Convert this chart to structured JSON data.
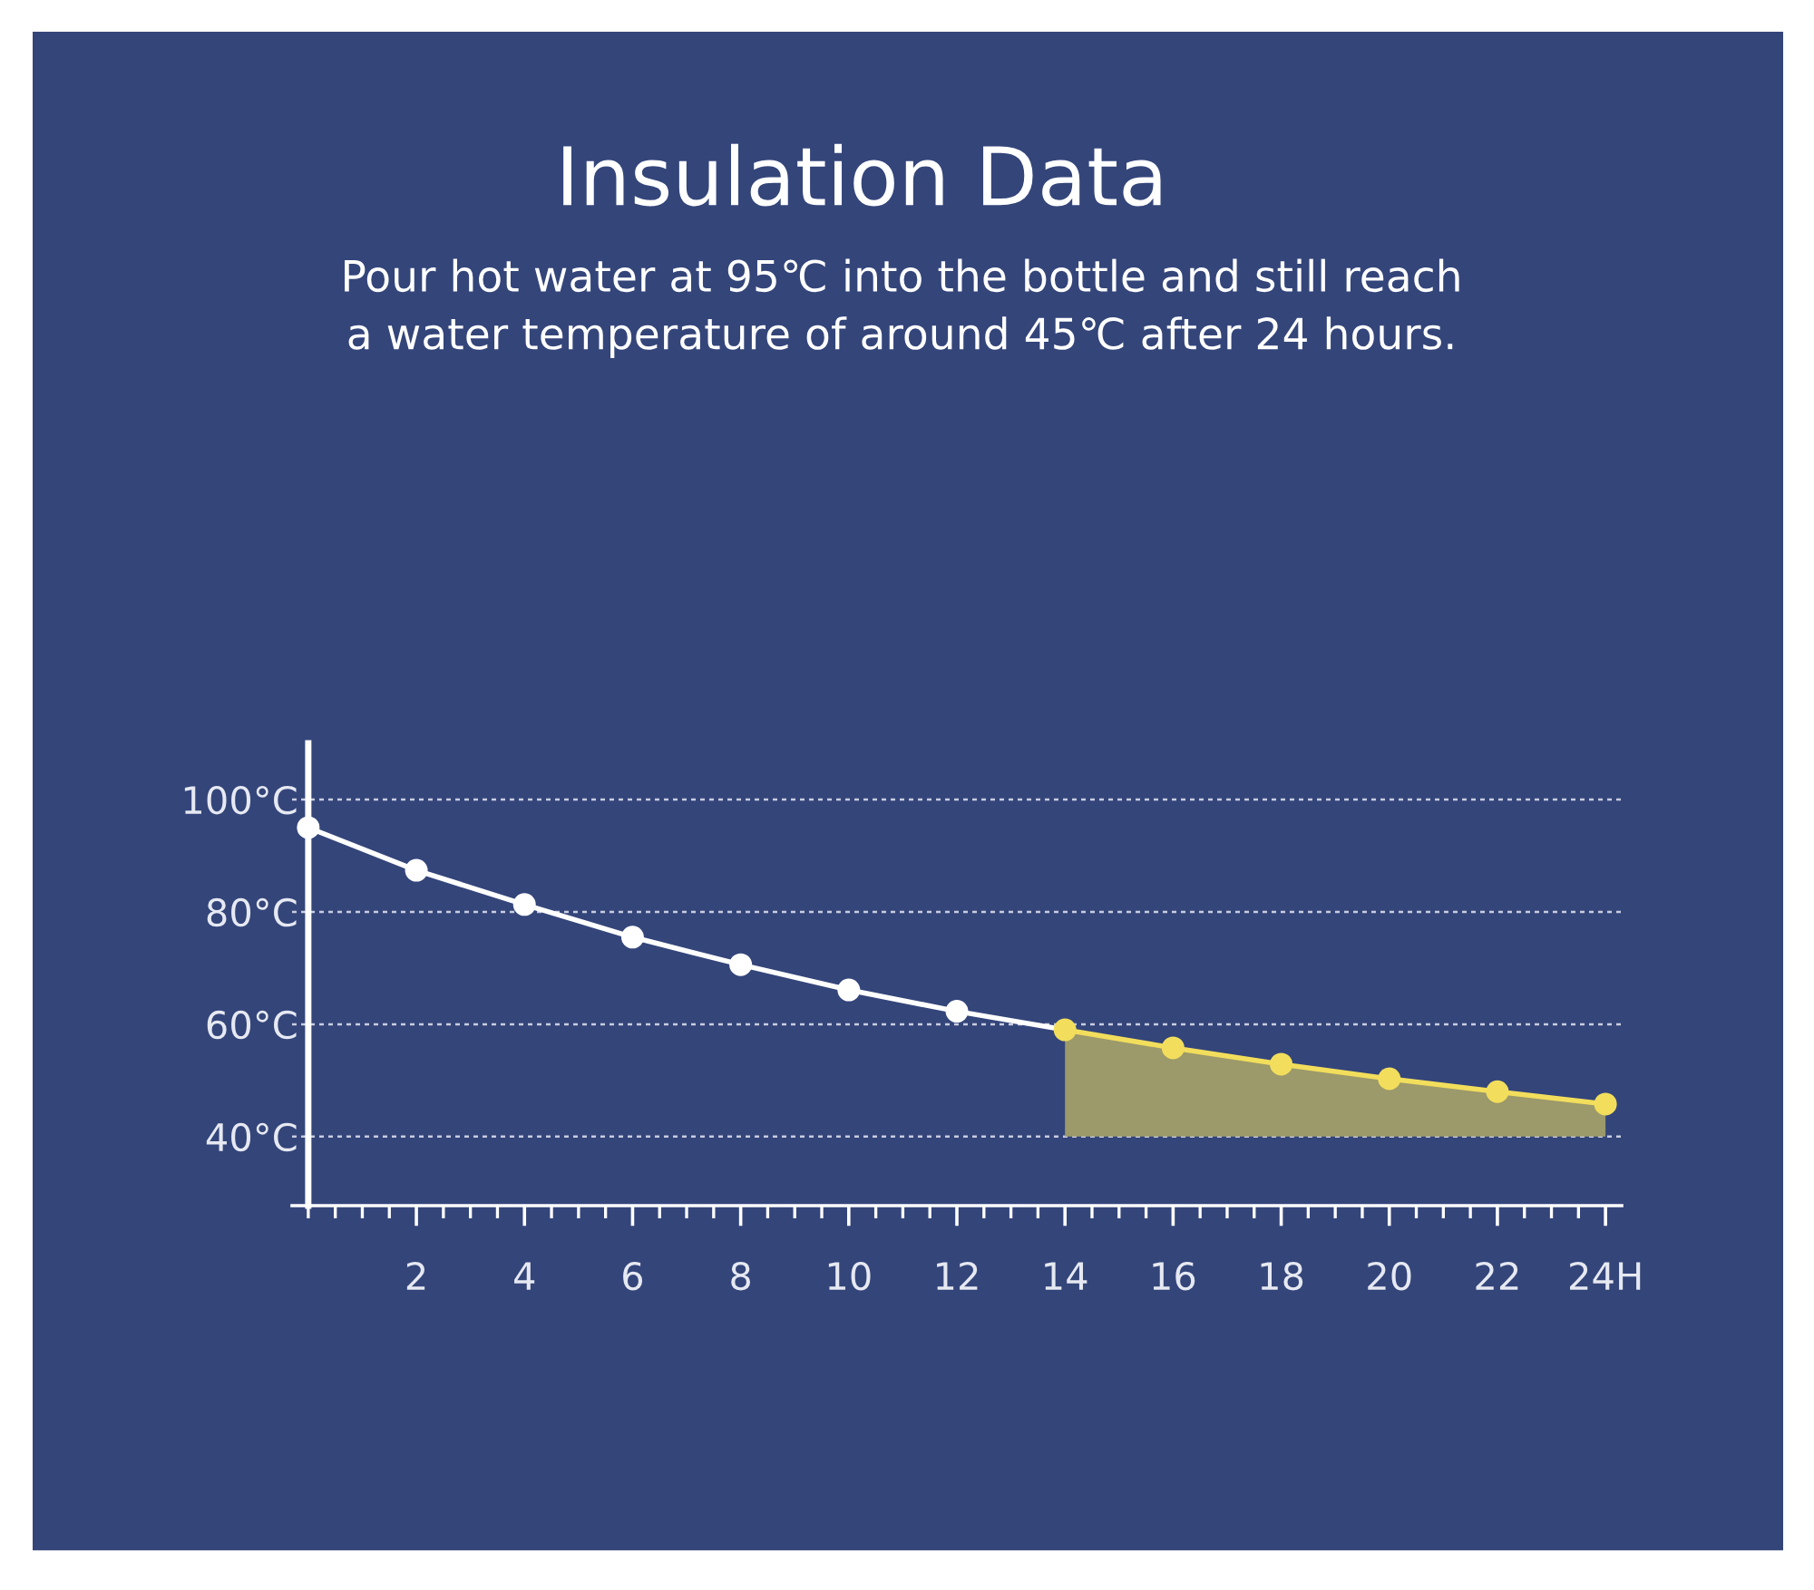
{
  "chart_data": {
    "type": "line",
    "title": "Insulation Data",
    "subtitle": "Pour hot water at 95℃ into the bottle and still reach a water temperature of around 45℃ after 24 hours.",
    "series": [
      {
        "color": "#ffffff",
        "x": [
          0,
          2,
          4,
          6,
          8,
          10,
          12,
          14
        ],
        "values": [
          95,
          87.4,
          81.3,
          75.5,
          70.6,
          66.1,
          62.3,
          59
        ]
      },
      {
        "type": "area",
        "color": "#f2de5c",
        "x": [
          14,
          16,
          18,
          20,
          22,
          24
        ],
        "values": [
          59,
          55.8,
          52.9,
          50.3,
          48,
          45.8
        ]
      }
    ],
    "xlim": [
      -0.3,
      24.3
    ],
    "ylim": [
      27.7,
      110
    ],
    "xticks": [
      2,
      4,
      6,
      8,
      10,
      12,
      14,
      16,
      18,
      20,
      22,
      {
        "value": 24,
        "label": "24H"
      }
    ],
    "yticks": [
      {
        "value": 40,
        "label": "40°C"
      },
      {
        "value": 60,
        "label": "60°C"
      },
      {
        "value": 80,
        "label": "80°C"
      },
      {
        "value": 100,
        "label": "100°C"
      }
    ],
    "grid": "y",
    "marker": "circle",
    "line_style": "solid"
  }
}
